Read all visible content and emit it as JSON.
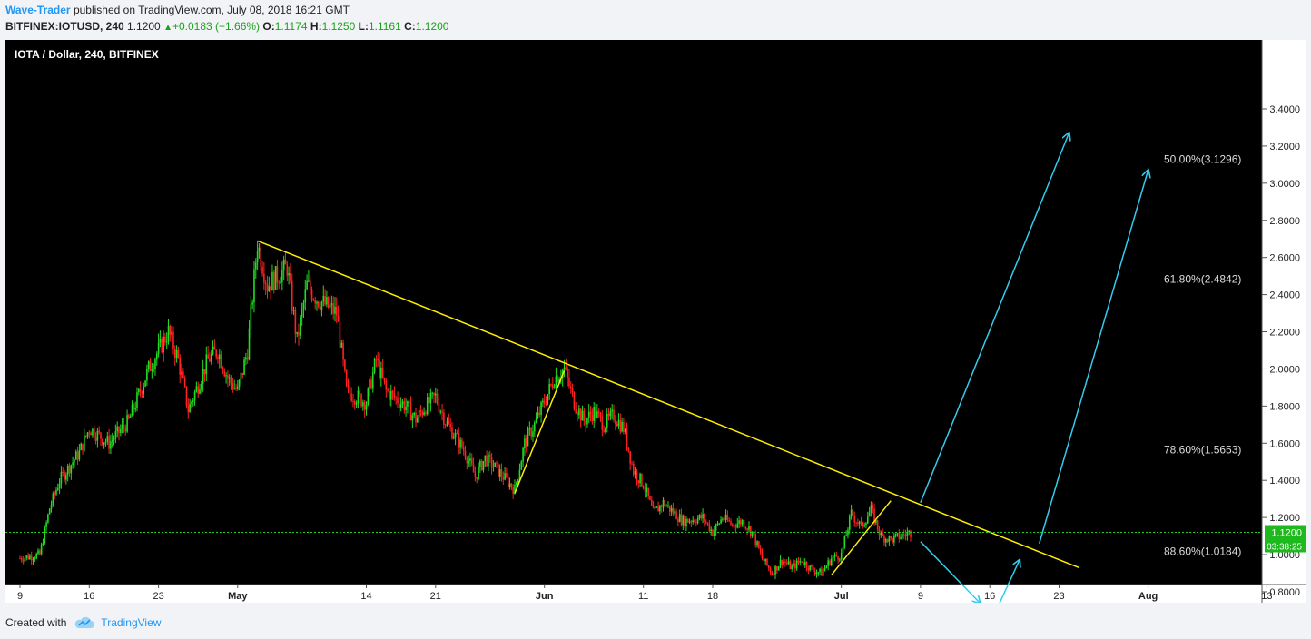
{
  "header": {
    "author": "Wave-Trader",
    "published": "published on TradingView.com, July 08, 2018 16:21 GMT",
    "symbol": "BITFINEX:IOTUSD, 240",
    "last": "1.1200",
    "change": "+0.0183 (+1.66%)",
    "o_label": "O:",
    "o_value": "1.1174",
    "h_label": "H:",
    "h_value": "1.1250",
    "l_label": "L:",
    "l_value": "1.1161",
    "c_label": "C:",
    "c_value": "1.1200"
  },
  "chart_data": {
    "type": "candlestick",
    "title": "IOTA / Dollar, 240, BITFINEX",
    "y_axis": {
      "min": 0.7,
      "max": 3.5,
      "ticks": [
        "0.8000",
        "1.0000",
        "1.2000",
        "1.4000",
        "1.6000",
        "1.8000",
        "2.0000",
        "2.2000",
        "2.4000",
        "2.6000",
        "2.8000",
        "3.0000",
        "3.2000",
        "3.4000"
      ]
    },
    "x_axis": {
      "tick_labels": [
        "9",
        "16",
        "23",
        "May",
        "14",
        "21",
        "Jun",
        "11",
        "18",
        "Jul",
        "9",
        "16",
        "23",
        "Aug",
        "13"
      ]
    },
    "current_price": {
      "value": 1.12,
      "label": "1.1200",
      "countdown": "03:38:25"
    },
    "price_path": [
      [
        "Apr 09",
        0.98
      ],
      [
        "Apr 11",
        1.0
      ],
      [
        "Apr 12",
        1.25
      ],
      [
        "Apr 13",
        1.4
      ],
      [
        "Apr 15",
        1.55
      ],
      [
        "Apr 16",
        1.68
      ],
      [
        "Apr 18",
        1.6
      ],
      [
        "Apr 20",
        1.72
      ],
      [
        "Apr 22",
        2.0
      ],
      [
        "Apr 24",
        2.2
      ],
      [
        "Apr 25",
        2.05
      ],
      [
        "Apr 26",
        1.78
      ],
      [
        "Apr 28",
        2.05
      ],
      [
        "Apr 29",
        2.1
      ],
      [
        "Apr 30",
        1.95
      ],
      [
        "May 01",
        1.88
      ],
      [
        "May 02",
        2.1
      ],
      [
        "May 03",
        2.68
      ],
      [
        "May 04",
        2.45
      ],
      [
        "May 06",
        2.55
      ],
      [
        "May 07",
        2.15
      ],
      [
        "May 08",
        2.45
      ],
      [
        "May 09",
        2.38
      ],
      [
        "May 11",
        2.3
      ],
      [
        "May 12",
        1.88
      ],
      [
        "May 14",
        1.82
      ],
      [
        "May 15",
        2.05
      ],
      [
        "May 16",
        1.88
      ],
      [
        "May 18",
        1.8
      ],
      [
        "May 19",
        1.73
      ],
      [
        "May 20",
        1.8
      ],
      [
        "May 21",
        1.85
      ],
      [
        "May 22",
        1.72
      ],
      [
        "May 24",
        1.55
      ],
      [
        "May 25",
        1.42
      ],
      [
        "May 26",
        1.52
      ],
      [
        "May 27",
        1.47
      ],
      [
        "May 29",
        1.35
      ],
      [
        "May 30",
        1.6
      ],
      [
        "May 31",
        1.7
      ],
      [
        "Jun 02",
        1.95
      ],
      [
        "Jun 03",
        2.0
      ],
      [
        "Jun 04",
        1.82
      ],
      [
        "Jun 05",
        1.72
      ],
      [
        "Jun 06",
        1.77
      ],
      [
        "Jun 07",
        1.7
      ],
      [
        "Jun 08",
        1.75
      ],
      [
        "Jun 09",
        1.68
      ],
      [
        "Jun 10",
        1.45
      ],
      [
        "Jun 11",
        1.38
      ],
      [
        "Jun 12",
        1.22
      ],
      [
        "Jun 13",
        1.28
      ],
      [
        "Jun 15",
        1.18
      ],
      [
        "Jun 17",
        1.2
      ],
      [
        "Jun 18",
        1.12
      ],
      [
        "Jun 19",
        1.2
      ],
      [
        "Jun 20",
        1.16
      ],
      [
        "Jun 21",
        1.18
      ],
      [
        "Jun 22",
        1.12
      ],
      [
        "Jun 23",
        0.98
      ],
      [
        "Jun 24",
        0.9
      ],
      [
        "Jun 25",
        0.97
      ],
      [
        "Jun 26",
        0.93
      ],
      [
        "Jun 27",
        0.97
      ],
      [
        "Jun 28",
        0.92
      ],
      [
        "Jun 29",
        0.9
      ],
      [
        "Jun 30",
        0.98
      ],
      [
        "Jul 01",
        1.0
      ],
      [
        "Jul 02",
        1.22
      ],
      [
        "Jul 03",
        1.15
      ],
      [
        "Jul 04",
        1.24
      ],
      [
        "Jul 05",
        1.1
      ],
      [
        "Jul 06",
        1.08
      ],
      [
        "Jul 07",
        1.1
      ],
      [
        "Jul 08",
        1.12
      ]
    ],
    "drawings": {
      "trendlines": [
        {
          "color": "#ffee00",
          "from": [
            "May 03",
            2.69
          ],
          "to": [
            "Jul 25",
            0.93
          ]
        },
        {
          "color": "#ffee00",
          "from": [
            "May 29",
            1.33
          ],
          "to": [
            "Jun 03",
            1.99
          ]
        },
        {
          "color": "#ffee00",
          "from": [
            "Jun 30",
            0.89
          ],
          "to": [
            "Jul 06",
            1.29
          ]
        }
      ],
      "arrows": [
        {
          "color": "#33ccee",
          "from": [
            "Jul 09",
            1.28
          ],
          "to": [
            "Jul 24",
            3.27
          ]
        },
        {
          "color": "#33ccee",
          "from": [
            "Jul 09",
            1.07
          ],
          "to": [
            "Jul 15",
            0.74
          ]
        },
        {
          "color": "#33ccee",
          "from": [
            "Jul 17",
            0.74
          ],
          "to": [
            "Jul 19",
            0.97
          ]
        },
        {
          "color": "#33ccee",
          "from": [
            "Jul 21",
            1.06
          ],
          "to": [
            "Aug 01",
            3.07
          ]
        }
      ]
    },
    "annotations": [
      {
        "text": "50.00%(3.1296)",
        "price": 3.1296
      },
      {
        "text": "61.80%(2.4842)",
        "price": 2.4842
      },
      {
        "text": "78.60%(1.5653)",
        "price": 1.5653
      },
      {
        "text": "88.60%(1.0184)",
        "price": 1.0184
      }
    ],
    "colors": {
      "background": "#000000",
      "up": "#22dd22",
      "down": "#ff2222",
      "trendline": "#ffee00",
      "arrow": "#33ccee",
      "price_line": "#22cc22"
    }
  },
  "footer": {
    "created_with": "Created with",
    "brand": "TradingView"
  }
}
